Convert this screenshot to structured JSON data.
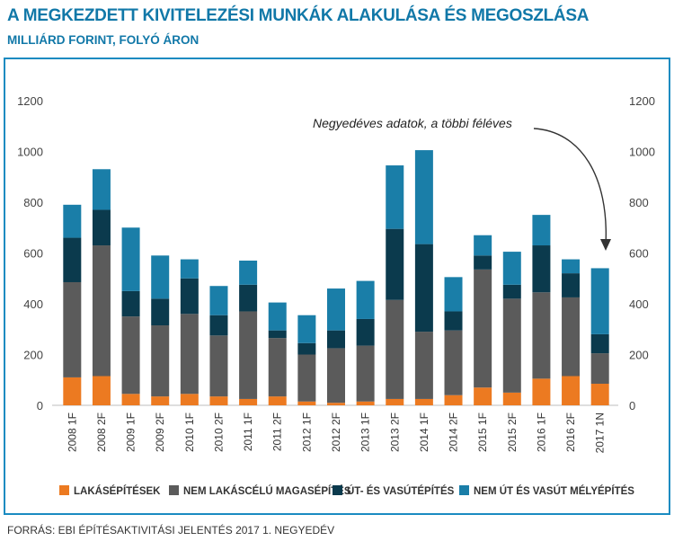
{
  "header": {
    "title": "A MEGKEZDETT KIVITELEZÉSI MUNKÁK ALAKULÁSA ÉS MEGOSZLÁSA",
    "subtitle": "MILLIÁRD FORINT, FOLYÓ ÁRON"
  },
  "footer": {
    "source": "FORRÁS: EBI ÉPÍTÉSAKTIVITÁSI JELENTÉS 2017 1. NEGYEDÉV"
  },
  "colors": {
    "accent": "#1178a8",
    "frame": "#1a8bc1",
    "series": [
      "#ec7a21",
      "#5b5b5b",
      "#0b3a4d",
      "#1a7ea8"
    ]
  },
  "chart_data": {
    "type": "bar",
    "stacked": true,
    "categories": [
      "2008 1F",
      "2008 2F",
      "2009 1F",
      "2009 2F",
      "2010 1F",
      "2010 2F",
      "2011 1F",
      "2011 2F",
      "2012 1F",
      "2012 2F",
      "2013 1F",
      "2013 2F",
      "2014 1F",
      "2014 2F",
      "2015 1F",
      "2015 2F",
      "2016 1F",
      "2016 2F",
      "2017 1N"
    ],
    "series": [
      {
        "name": "LAKÁSÉPÍTÉSEK",
        "values": [
          110,
          115,
          45,
          35,
          45,
          35,
          25,
          35,
          15,
          10,
          15,
          25,
          25,
          40,
          70,
          50,
          105,
          115,
          85
        ]
      },
      {
        "name": "NEM LAKÁSCÉLÚ MAGASÉPÍTÉS",
        "values": [
          375,
          515,
          305,
          280,
          315,
          240,
          345,
          230,
          185,
          215,
          220,
          390,
          265,
          255,
          465,
          370,
          340,
          310,
          120
        ]
      },
      {
        "name": "ÚT- ÉS VASÚTÉPÍTÉS",
        "values": [
          175,
          140,
          100,
          105,
          140,
          80,
          105,
          30,
          45,
          70,
          105,
          280,
          345,
          75,
          55,
          55,
          185,
          95,
          75
        ]
      },
      {
        "name": "NEM ÚT ÉS VASÚT MÉLYÉPÍTÉS",
        "values": [
          130,
          160,
          250,
          170,
          75,
          115,
          95,
          110,
          110,
          165,
          150,
          250,
          370,
          135,
          80,
          130,
          120,
          55,
          260
        ]
      }
    ],
    "ylim": [
      0,
      1200
    ],
    "yticks": [
      0,
      200,
      400,
      600,
      800,
      1000,
      1200
    ],
    "secondary_y_axis": true,
    "legend_position": "bottom",
    "annotation": "Negyedéves adatok, a többi féléves"
  }
}
